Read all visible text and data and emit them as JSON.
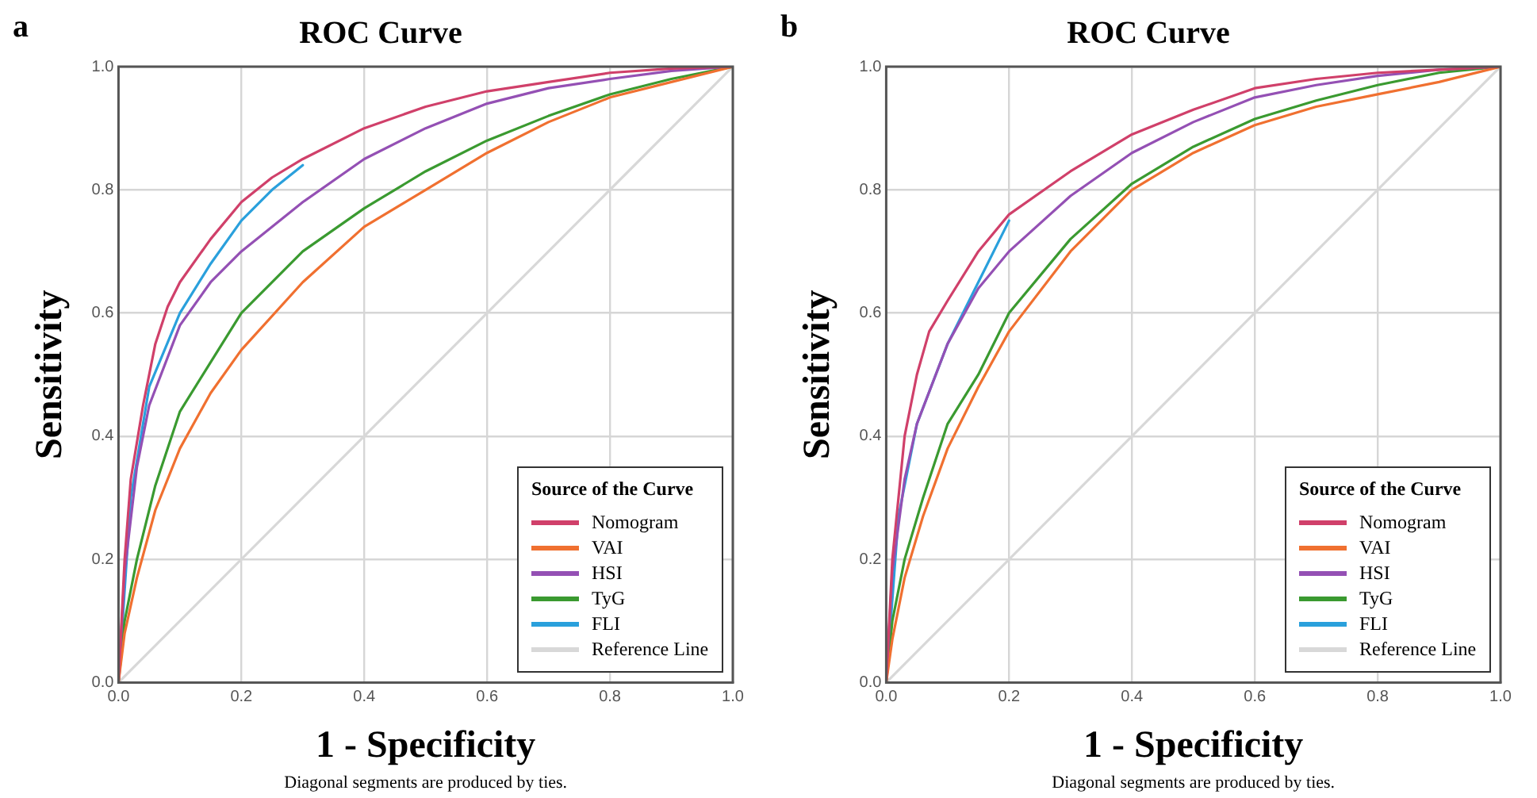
{
  "chart_data": [
    {
      "type": "line",
      "title": "ROC Curve",
      "xlabel": "1 - Specificity",
      "ylabel": "Sensitivity",
      "legend_title": "Source of the Curve",
      "annotations": [
        "a",
        "Diagonal segments are produced by ties."
      ],
      "xlim": [
        0,
        1
      ],
      "ylim": [
        0,
        1
      ],
      "xticks": [
        {
          "value": 0,
          "label": "0.0"
        },
        {
          "value": 0.2,
          "label": "0.2"
        },
        {
          "value": 0.4,
          "label": "0.4"
        },
        {
          "value": 0.6,
          "label": "0.6"
        },
        {
          "value": 0.8,
          "label": "0.8"
        },
        {
          "value": 1,
          "label": "1.0"
        }
      ],
      "yticks": [
        {
          "value": 0,
          "label": "0.0"
        },
        {
          "value": 0.2,
          "label": "0.2"
        },
        {
          "value": 0.4,
          "label": "0.4"
        },
        {
          "value": 0.6,
          "label": "0.6"
        },
        {
          "value": 0.8,
          "label": "0.8"
        },
        {
          "value": 1,
          "label": "1.0"
        }
      ],
      "grid": true,
      "legend": "bottom right",
      "marker": "none",
      "line_style": "solid",
      "series": [
        {
          "name": "Nomogram",
          "color": "#d0406a",
          "x": [
            0,
            0.01,
            0.02,
            0.04,
            0.06,
            0.08,
            0.1,
            0.15,
            0.2,
            0.25,
            0.3,
            0.4,
            0.5,
            0.6,
            0.7,
            0.8,
            0.9,
            1
          ],
          "values": [
            0,
            0.2,
            0.33,
            0.45,
            0.55,
            0.61,
            0.65,
            0.72,
            0.78,
            0.82,
            0.85,
            0.9,
            0.935,
            0.96,
            0.975,
            0.99,
            0.997,
            1
          ]
        },
        {
          "name": "VAI",
          "color": "#f07030",
          "x": [
            0,
            0.01,
            0.03,
            0.06,
            0.1,
            0.15,
            0.2,
            0.3,
            0.4,
            0.5,
            0.6,
            0.7,
            0.8,
            0.9,
            1
          ],
          "values": [
            0,
            0.08,
            0.17,
            0.28,
            0.38,
            0.47,
            0.54,
            0.65,
            0.74,
            0.8,
            0.86,
            0.91,
            0.95,
            0.975,
            1
          ]
        },
        {
          "name": "HSI",
          "color": "#9450b4",
          "x": [
            0,
            0.01,
            0.03,
            0.05,
            0.1,
            0.15,
            0.2,
            0.3,
            0.4,
            0.5,
            0.6,
            0.7,
            0.8,
            0.9,
            1
          ],
          "values": [
            0,
            0.18,
            0.35,
            0.45,
            0.58,
            0.65,
            0.7,
            0.78,
            0.85,
            0.9,
            0.94,
            0.965,
            0.98,
            0.993,
            1
          ]
        },
        {
          "name": "TyG",
          "color": "#3a9a30",
          "x": [
            0,
            0.01,
            0.03,
            0.06,
            0.1,
            0.15,
            0.2,
            0.3,
            0.4,
            0.5,
            0.6,
            0.7,
            0.8,
            0.9,
            1
          ],
          "values": [
            0,
            0.1,
            0.2,
            0.32,
            0.44,
            0.52,
            0.6,
            0.7,
            0.77,
            0.83,
            0.88,
            0.92,
            0.955,
            0.98,
            1
          ]
        },
        {
          "name": "FLI",
          "color": "#2aa0dc",
          "x": [
            0,
            0.02,
            0.05,
            0.1,
            0.15,
            0.2,
            0.25,
            0.3
          ],
          "values": [
            0,
            0.3,
            0.48,
            0.6,
            0.68,
            0.75,
            0.8,
            0.84
          ]
        },
        {
          "name": "Reference Line",
          "color": "#d8d8d8",
          "x": [
            0,
            1
          ],
          "values": [
            0,
            1
          ]
        }
      ]
    },
    {
      "type": "line",
      "title": "ROC Curve",
      "xlabel": "1 - Specificity",
      "ylabel": "Sensitivity",
      "legend_title": "Source of the Curve",
      "annotations": [
        "b",
        "Diagonal segments are produced by ties."
      ],
      "xlim": [
        0,
        1
      ],
      "ylim": [
        0,
        1
      ],
      "xticks": [
        {
          "value": 0,
          "label": "0.0"
        },
        {
          "value": 0.2,
          "label": "0.2"
        },
        {
          "value": 0.4,
          "label": "0.4"
        },
        {
          "value": 0.6,
          "label": "0.6"
        },
        {
          "value": 0.8,
          "label": "0.8"
        },
        {
          "value": 1,
          "label": "1.0"
        }
      ],
      "yticks": [
        {
          "value": 0,
          "label": "0.0"
        },
        {
          "value": 0.2,
          "label": "0.2"
        },
        {
          "value": 0.4,
          "label": "0.4"
        },
        {
          "value": 0.6,
          "label": "0.6"
        },
        {
          "value": 0.8,
          "label": "0.8"
        },
        {
          "value": 1,
          "label": "1.0"
        }
      ],
      "grid": true,
      "legend": "bottom right",
      "marker": "none",
      "line_style": "solid",
      "series": [
        {
          "name": "Nomogram",
          "color": "#d0406a",
          "x": [
            0,
            0.01,
            0.02,
            0.03,
            0.05,
            0.07,
            0.1,
            0.15,
            0.2,
            0.3,
            0.4,
            0.5,
            0.6,
            0.7,
            0.8,
            0.9,
            1
          ],
          "values": [
            0,
            0.2,
            0.3,
            0.4,
            0.5,
            0.57,
            0.62,
            0.7,
            0.76,
            0.83,
            0.89,
            0.93,
            0.965,
            0.98,
            0.99,
            0.995,
            1
          ]
        },
        {
          "name": "VAI",
          "color": "#f07030",
          "x": [
            0,
            0.01,
            0.03,
            0.06,
            0.1,
            0.15,
            0.2,
            0.3,
            0.4,
            0.5,
            0.6,
            0.7,
            0.8,
            0.9,
            1
          ],
          "values": [
            0,
            0.07,
            0.17,
            0.27,
            0.38,
            0.48,
            0.57,
            0.7,
            0.8,
            0.86,
            0.905,
            0.935,
            0.955,
            0.975,
            1
          ]
        },
        {
          "name": "HSI",
          "color": "#9450b4",
          "x": [
            0,
            0.01,
            0.03,
            0.05,
            0.1,
            0.15,
            0.2,
            0.3,
            0.4,
            0.5,
            0.6,
            0.7,
            0.8,
            0.9,
            1
          ],
          "values": [
            0,
            0.18,
            0.33,
            0.42,
            0.55,
            0.64,
            0.7,
            0.79,
            0.86,
            0.91,
            0.95,
            0.97,
            0.985,
            0.995,
            1
          ]
        },
        {
          "name": "TyG",
          "color": "#3a9a30",
          "x": [
            0,
            0.01,
            0.03,
            0.06,
            0.1,
            0.15,
            0.2,
            0.3,
            0.4,
            0.5,
            0.6,
            0.7,
            0.8,
            0.9,
            1
          ],
          "values": [
            0,
            0.1,
            0.2,
            0.3,
            0.42,
            0.5,
            0.6,
            0.72,
            0.81,
            0.87,
            0.915,
            0.945,
            0.97,
            0.99,
            1
          ]
        },
        {
          "name": "FLI",
          "color": "#2aa0dc",
          "x": [
            0,
            0.02,
            0.05,
            0.1,
            0.15,
            0.2
          ],
          "values": [
            0,
            0.27,
            0.42,
            0.55,
            0.65,
            0.75
          ]
        },
        {
          "name": "Reference Line",
          "color": "#d8d8d8",
          "x": [
            0,
            1
          ],
          "values": [
            0,
            1
          ]
        }
      ]
    }
  ]
}
